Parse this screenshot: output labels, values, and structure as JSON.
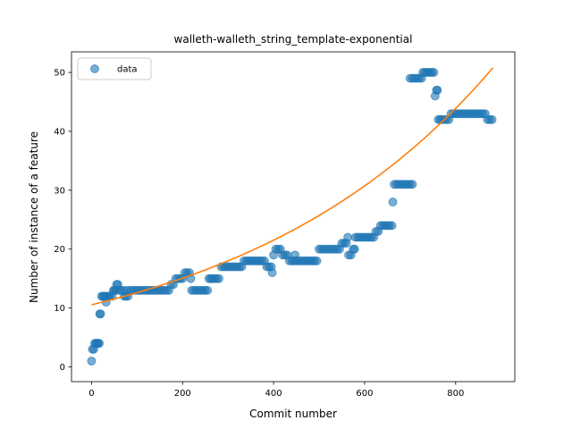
{
  "chart_data": {
    "type": "scatter",
    "title": "walleth-walleth_string_template-exponential",
    "xlabel": "Commit number",
    "ylabel": "Number of instance of a feature",
    "xlim": [
      -44,
      930
    ],
    "ylim": [
      -2.5,
      53.5
    ],
    "x_ticks": [
      0,
      200,
      400,
      600,
      800
    ],
    "y_ticks": [
      0,
      10,
      20,
      30,
      40,
      50
    ],
    "grid": false,
    "legend": {
      "placement": "top-left",
      "entries": [
        "data"
      ]
    },
    "colors": {
      "data": "#1f77b4",
      "fit": "#ff7f0e"
    },
    "series": [
      {
        "name": "data",
        "kind": "scatter",
        "points": [
          [
            0,
            1
          ],
          [
            2,
            3
          ],
          [
            5,
            3
          ],
          [
            7,
            4
          ],
          [
            10,
            4
          ],
          [
            12,
            4
          ],
          [
            15,
            4
          ],
          [
            17,
            4
          ],
          [
            18,
            9
          ],
          [
            20,
            9
          ],
          [
            22,
            12
          ],
          [
            25,
            12
          ],
          [
            28,
            12
          ],
          [
            30,
            12
          ],
          [
            32,
            11
          ],
          [
            35,
            12
          ],
          [
            38,
            12
          ],
          [
            40,
            12
          ],
          [
            45,
            12
          ],
          [
            48,
            13
          ],
          [
            50,
            13
          ],
          [
            53,
            13
          ],
          [
            55,
            14
          ],
          [
            58,
            14
          ],
          [
            60,
            13
          ],
          [
            65,
            13
          ],
          [
            70,
            13
          ],
          [
            72,
            12
          ],
          [
            75,
            12
          ],
          [
            78,
            13
          ],
          [
            80,
            12
          ],
          [
            85,
            13
          ],
          [
            90,
            13
          ],
          [
            95,
            13
          ],
          [
            100,
            13
          ],
          [
            105,
            13
          ],
          [
            110,
            13
          ],
          [
            115,
            13
          ],
          [
            120,
            13
          ],
          [
            125,
            13
          ],
          [
            130,
            13
          ],
          [
            135,
            13
          ],
          [
            140,
            13
          ],
          [
            145,
            13
          ],
          [
            150,
            13
          ],
          [
            155,
            13
          ],
          [
            160,
            13
          ],
          [
            165,
            13
          ],
          [
            170,
            13
          ],
          [
            175,
            14
          ],
          [
            180,
            14
          ],
          [
            185,
            15
          ],
          [
            190,
            15
          ],
          [
            195,
            15
          ],
          [
            200,
            15
          ],
          [
            205,
            16
          ],
          [
            210,
            16
          ],
          [
            215,
            16
          ],
          [
            218,
            15
          ],
          [
            220,
            13
          ],
          [
            225,
            13
          ],
          [
            230,
            13
          ],
          [
            235,
            13
          ],
          [
            240,
            13
          ],
          [
            245,
            13
          ],
          [
            250,
            13
          ],
          [
            255,
            13
          ],
          [
            258,
            15
          ],
          [
            262,
            15
          ],
          [
            265,
            15
          ],
          [
            270,
            15
          ],
          [
            275,
            15
          ],
          [
            280,
            15
          ],
          [
            285,
            17
          ],
          [
            290,
            17
          ],
          [
            295,
            17
          ],
          [
            300,
            17
          ],
          [
            305,
            17
          ],
          [
            310,
            17
          ],
          [
            315,
            17
          ],
          [
            320,
            17
          ],
          [
            325,
            17
          ],
          [
            330,
            17
          ],
          [
            335,
            18
          ],
          [
            340,
            18
          ],
          [
            345,
            18
          ],
          [
            350,
            18
          ],
          [
            355,
            18
          ],
          [
            360,
            18
          ],
          [
            365,
            18
          ],
          [
            370,
            18
          ],
          [
            375,
            18
          ],
          [
            380,
            18
          ],
          [
            385,
            17
          ],
          [
            390,
            17
          ],
          [
            395,
            17
          ],
          [
            397,
            16
          ],
          [
            400,
            19
          ],
          [
            405,
            20
          ],
          [
            410,
            20
          ],
          [
            415,
            20
          ],
          [
            420,
            19
          ],
          [
            425,
            19
          ],
          [
            430,
            19
          ],
          [
            435,
            18
          ],
          [
            440,
            18
          ],
          [
            445,
            18
          ],
          [
            447,
            19
          ],
          [
            450,
            18
          ],
          [
            455,
            18
          ],
          [
            460,
            18
          ],
          [
            465,
            18
          ],
          [
            470,
            18
          ],
          [
            475,
            18
          ],
          [
            480,
            18
          ],
          [
            485,
            18
          ],
          [
            490,
            18
          ],
          [
            495,
            18
          ],
          [
            500,
            20
          ],
          [
            505,
            20
          ],
          [
            510,
            20
          ],
          [
            515,
            20
          ],
          [
            520,
            20
          ],
          [
            525,
            20
          ],
          [
            530,
            20
          ],
          [
            535,
            20
          ],
          [
            540,
            20
          ],
          [
            545,
            20
          ],
          [
            550,
            21
          ],
          [
            555,
            21
          ],
          [
            560,
            21
          ],
          [
            563,
            22
          ],
          [
            565,
            19
          ],
          [
            570,
            19
          ],
          [
            575,
            20
          ],
          [
            578,
            20
          ],
          [
            580,
            22
          ],
          [
            585,
            22
          ],
          [
            590,
            22
          ],
          [
            595,
            22
          ],
          [
            600,
            22
          ],
          [
            605,
            22
          ],
          [
            610,
            22
          ],
          [
            615,
            22
          ],
          [
            620,
            22
          ],
          [
            625,
            23
          ],
          [
            630,
            23
          ],
          [
            635,
            24
          ],
          [
            640,
            24
          ],
          [
            645,
            24
          ],
          [
            650,
            24
          ],
          [
            655,
            24
          ],
          [
            660,
            24
          ],
          [
            662,
            28
          ],
          [
            665,
            31
          ],
          [
            670,
            31
          ],
          [
            675,
            31
          ],
          [
            680,
            31
          ],
          [
            685,
            31
          ],
          [
            690,
            31
          ],
          [
            695,
            31
          ],
          [
            700,
            31
          ],
          [
            705,
            31
          ],
          [
            700,
            49
          ],
          [
            705,
            49
          ],
          [
            710,
            49
          ],
          [
            715,
            49
          ],
          [
            720,
            49
          ],
          [
            725,
            49
          ],
          [
            728,
            50
          ],
          [
            732,
            50
          ],
          [
            736,
            50
          ],
          [
            740,
            50
          ],
          [
            744,
            50
          ],
          [
            748,
            50
          ],
          [
            752,
            50
          ],
          [
            755,
            46
          ],
          [
            758,
            47
          ],
          [
            760,
            47
          ],
          [
            762,
            42
          ],
          [
            766,
            42
          ],
          [
            770,
            42
          ],
          [
            775,
            42
          ],
          [
            780,
            42
          ],
          [
            785,
            42
          ],
          [
            790,
            43
          ],
          [
            795,
            43
          ],
          [
            800,
            43
          ],
          [
            805,
            43
          ],
          [
            810,
            43
          ],
          [
            815,
            43
          ],
          [
            820,
            43
          ],
          [
            825,
            43
          ],
          [
            830,
            43
          ],
          [
            835,
            43
          ],
          [
            840,
            43
          ],
          [
            845,
            43
          ],
          [
            850,
            43
          ],
          [
            855,
            43
          ],
          [
            860,
            43
          ],
          [
            865,
            43
          ],
          [
            870,
            42
          ],
          [
            875,
            42
          ],
          [
            880,
            42
          ]
        ]
      },
      {
        "name": "",
        "kind": "line",
        "model": "exponential",
        "a": 10.55,
        "b": 0.001782,
        "c": 0,
        "x_range": [
          0,
          882
        ]
      }
    ]
  }
}
